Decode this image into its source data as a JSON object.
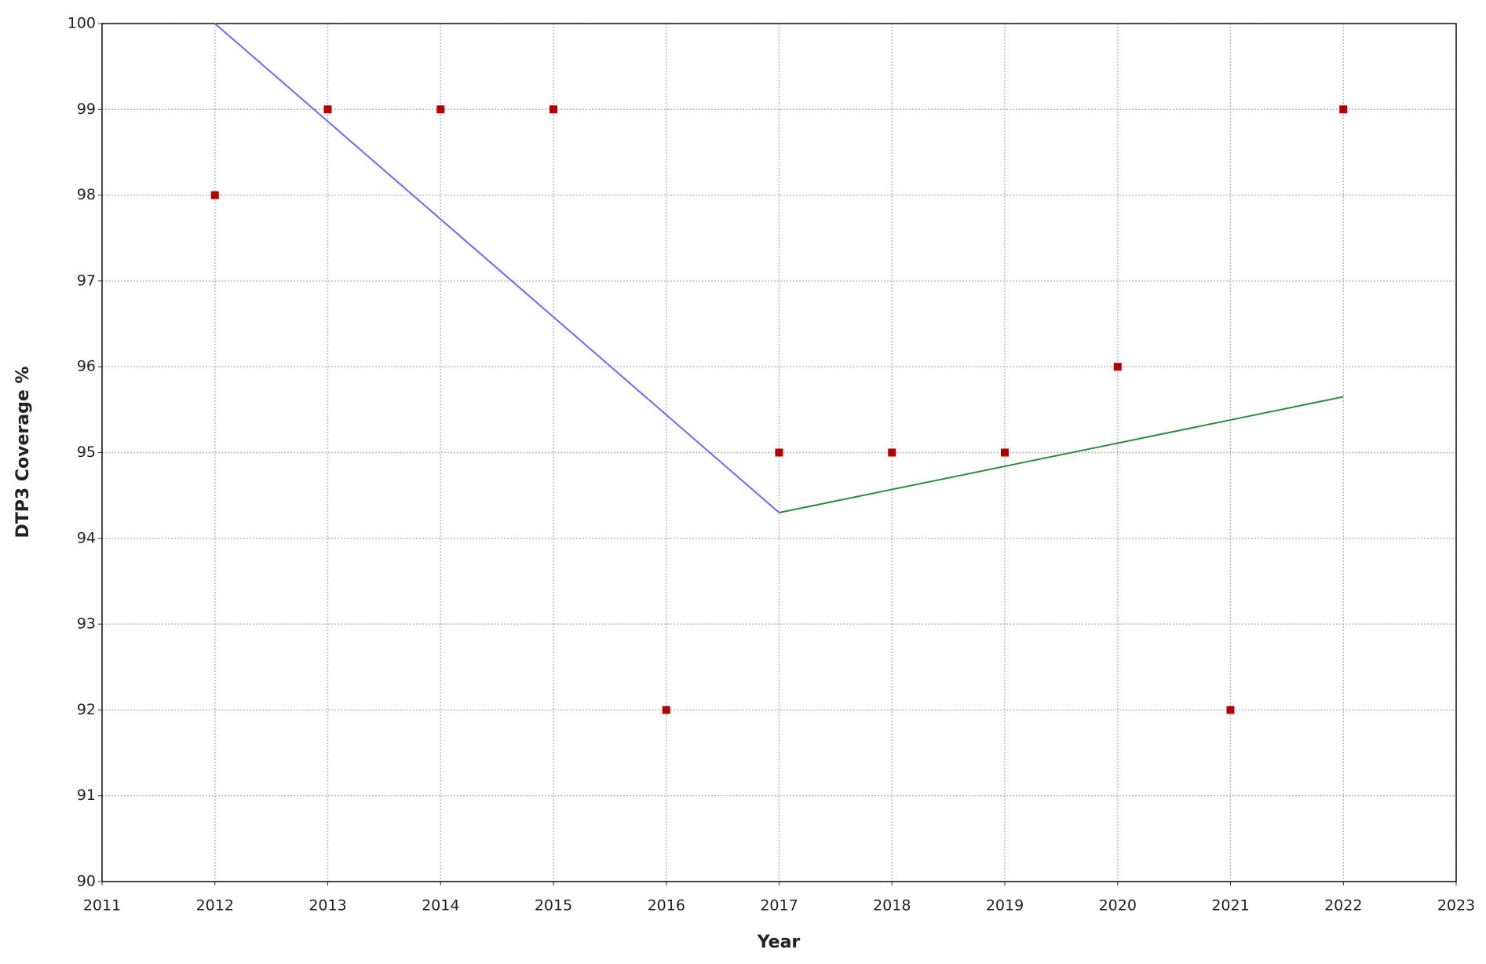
{
  "chart_data": {
    "type": "scatter",
    "x_label": "Year",
    "y_label": "DTP3  Coverage %",
    "xlim": [
      2011,
      2023
    ],
    "ylim": [
      90,
      100
    ],
    "xticks": [
      2011,
      2012,
      2013,
      2014,
      2015,
      2016,
      2017,
      2018,
      2019,
      2020,
      2021,
      2022,
      2023
    ],
    "yticks": [
      90,
      91,
      92,
      93,
      94,
      95,
      96,
      97,
      98,
      99,
      100
    ],
    "grid": true,
    "series": [
      {
        "type": "scatter",
        "color": "#b00000",
        "x": [
          2012,
          2013,
          2014,
          2015,
          2016,
          2017,
          2018,
          2019,
          2020,
          2021,
          2022
        ],
        "values": [
          98,
          99,
          99,
          99,
          92,
          95,
          95,
          95,
          96,
          92,
          99
        ]
      },
      {
        "type": "line",
        "color": "#6b6bf0",
        "x": [
          2012,
          2017
        ],
        "values": [
          100,
          94.3
        ]
      },
      {
        "type": "line",
        "color": "#2e8b3a",
        "x": [
          2017,
          2022
        ],
        "values": [
          94.3,
          95.65
        ]
      }
    ]
  }
}
